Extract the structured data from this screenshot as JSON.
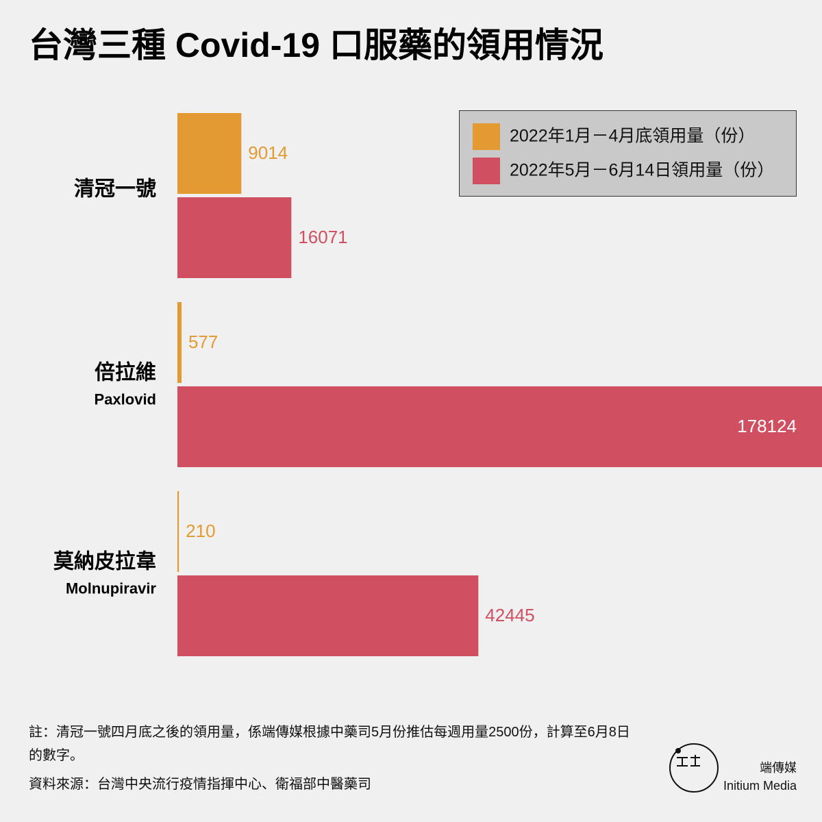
{
  "chart_data": {
    "type": "bar",
    "orientation": "horizontal",
    "title": "台灣三種 Covid-19 口服藥的領用情況",
    "categories": [
      [
        "清冠一號"
      ],
      [
        "倍拉維",
        "Paxlovid"
      ],
      [
        "莫納皮拉韋",
        "Molnupiravir"
      ]
    ],
    "series": [
      {
        "name": "2022年1月－4月底領用量（份）",
        "color": "#e39a33",
        "values": [
          9014,
          577,
          210
        ]
      },
      {
        "name": "2022年5月－6月14日領用量（份）",
        "color": "#d05062",
        "values": [
          16071,
          178124,
          42445
        ]
      }
    ],
    "legend": "upper right",
    "note": "註：清冠一號四月底之後的領用量，係端傳媒根據中藥司5月份推估每週用量2500份，計算至6月8日的數字。",
    "source": "資料來源：台灣中央流行疫情指揮中心、衛福部中醫藥司",
    "brand": [
      "端傳媒",
      "Initium Media"
    ]
  }
}
